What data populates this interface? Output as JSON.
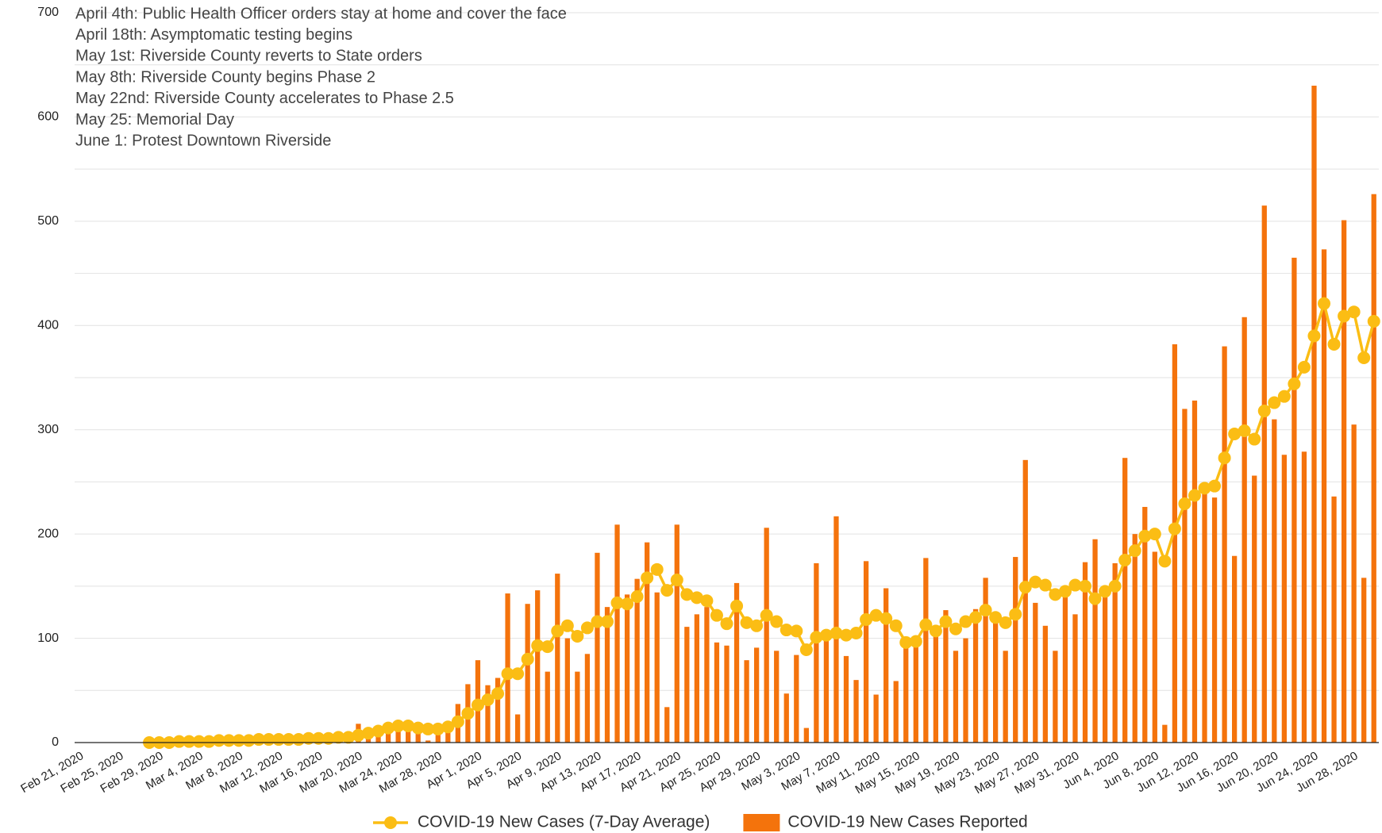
{
  "chart_data": {
    "type": "combo",
    "annotations": [
      "April 4th: Public Health Officer orders stay at home and cover the face",
      "April 18th: Asymptomatic testing begins",
      "May 1st: Riverside County reverts to State orders",
      "May 8th: Riverside County begins Phase 2",
      "May 22nd: Riverside County accelerates to Phase 2.5",
      "May 25: Memorial Day",
      "June 1: Protest Downtown Riverside"
    ],
    "categories": [
      "Feb 21, 2020",
      null,
      null,
      null,
      "Feb 25, 2020",
      null,
      null,
      null,
      "Feb 29, 2020",
      null,
      null,
      null,
      "Mar 4, 2020",
      null,
      null,
      null,
      "Mar 8, 2020",
      null,
      null,
      null,
      "Mar 12, 2020",
      null,
      null,
      null,
      "Mar 16, 2020",
      null,
      null,
      null,
      "Mar 20, 2020",
      null,
      null,
      null,
      "Mar 24, 2020",
      null,
      null,
      null,
      "Mar 28, 2020",
      null,
      null,
      null,
      "Apr 1, 2020",
      null,
      null,
      null,
      "Apr 5, 2020",
      null,
      null,
      null,
      "Apr 9, 2020",
      null,
      null,
      null,
      "Apr 13, 2020",
      null,
      null,
      null,
      "Apr 17, 2020",
      null,
      null,
      null,
      "Apr 21, 2020",
      null,
      null,
      null,
      "Apr 25, 2020",
      null,
      null,
      null,
      "Apr 29, 2020",
      null,
      null,
      null,
      "May 3, 2020",
      null,
      null,
      null,
      "May 7, 2020",
      null,
      null,
      null,
      "May 11, 2020",
      null,
      null,
      null,
      "May 15, 2020",
      null,
      null,
      null,
      "May 19, 2020",
      null,
      null,
      null,
      "May 23, 2020",
      null,
      null,
      null,
      "May 27, 2020",
      null,
      null,
      null,
      "May 31, 2020",
      null,
      null,
      null,
      "Jun 4, 2020",
      null,
      null,
      null,
      "Jun 8, 2020",
      null,
      null,
      null,
      "Jun 12, 2020",
      null,
      null,
      null,
      "Jun 16, 2020",
      null,
      null,
      null,
      "Jun 20, 2020",
      null,
      null,
      null,
      "Jun 24, 2020",
      null,
      null,
      null,
      "Jun 28, 2020",
      null,
      null
    ],
    "series": [
      {
        "name": "COVID-19 New Cases (7-Day Average)",
        "type": "line",
        "color": "#fbbd14",
        "values": [
          null,
          null,
          null,
          null,
          null,
          null,
          null,
          0,
          0,
          0,
          1,
          1,
          1,
          1,
          2,
          2,
          2,
          2,
          3,
          3,
          3,
          3,
          3,
          4,
          4,
          4,
          5,
          5,
          7,
          9,
          11,
          14,
          16,
          16,
          14,
          13,
          13,
          15,
          20,
          28,
          36,
          41,
          47,
          66,
          66,
          80,
          93,
          92,
          107,
          112,
          102,
          110,
          116,
          116,
          134,
          133,
          140,
          158,
          166,
          146,
          156,
          142,
          139,
          136,
          122,
          114,
          131,
          115,
          112,
          122,
          116,
          108,
          107,
          89,
          101,
          103,
          105,
          103,
          105,
          118,
          122,
          119,
          112,
          96,
          97,
          113,
          107,
          116,
          109,
          116,
          120,
          127,
          120,
          115,
          123,
          149,
          154,
          151,
          142,
          145,
          151,
          150,
          138,
          145,
          150,
          175,
          184,
          198,
          200,
          174,
          205,
          229,
          237,
          244,
          246,
          273,
          296,
          299,
          291,
          318,
          326,
          332,
          344,
          360,
          390,
          421,
          382,
          409,
          413,
          369,
          404
        ]
      },
      {
        "name": "COVID-19 New Cases Reported",
        "type": "bar",
        "color": "#f4730c",
        "values": [
          0,
          0,
          0,
          0,
          0,
          0,
          0,
          0,
          1,
          0,
          1,
          2,
          1,
          3,
          2,
          4,
          3,
          2,
          5,
          6,
          4,
          5,
          3,
          6,
          7,
          5,
          4,
          8,
          18,
          8,
          10,
          12,
          18,
          16,
          10,
          2,
          12,
          14,
          37,
          56,
          79,
          55,
          62,
          143,
          27,
          133,
          146,
          68,
          162,
          100,
          68,
          85,
          182,
          130,
          209,
          142,
          157,
          192,
          144,
          34,
          209,
          111,
          123,
          130,
          96,
          93,
          153,
          79,
          91,
          206,
          88,
          47,
          84,
          14,
          172,
          102,
          217,
          83,
          60,
          174,
          46,
          148,
          59,
          96,
          98,
          177,
          110,
          127,
          88,
          100,
          128,
          158,
          120,
          88,
          178,
          271,
          134,
          112,
          88,
          140,
          123,
          173,
          195,
          145,
          172,
          273,
          200,
          226,
          183,
          17,
          382,
          320,
          328,
          240,
          235,
          380,
          179,
          408,
          256,
          515,
          310,
          276,
          465,
          279,
          630,
          473,
          236,
          501,
          305,
          158,
          526
        ]
      }
    ],
    "ylim": [
      0,
      700
    ],
    "yticks": [
      0,
      100,
      200,
      300,
      400,
      500,
      600,
      700
    ],
    "minor_grid": [
      50,
      150,
      250,
      350,
      450,
      550,
      650
    ],
    "grid": true,
    "legend": "bottom"
  }
}
